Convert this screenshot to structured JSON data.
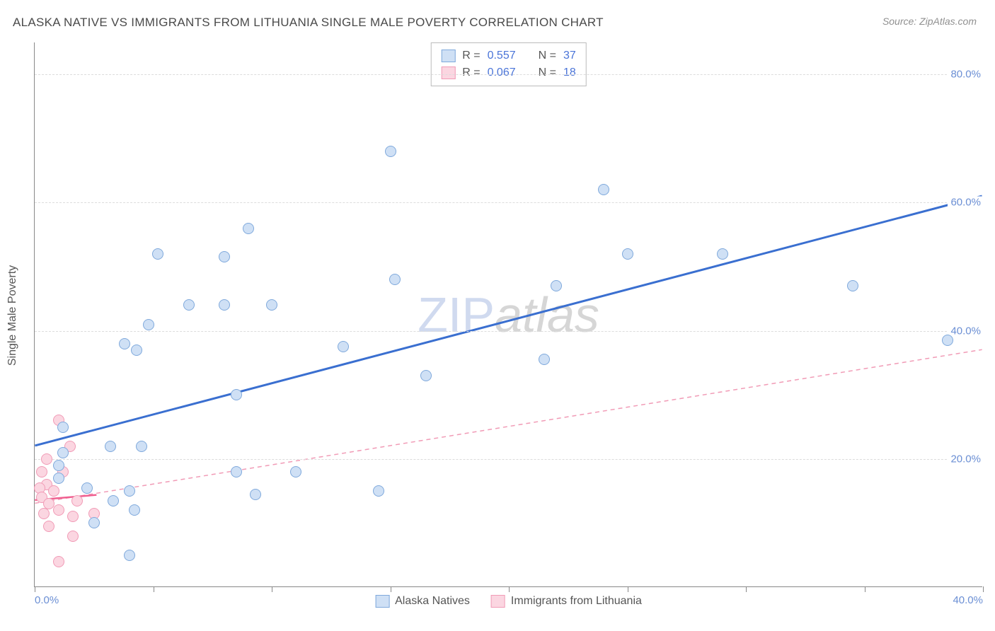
{
  "title": "ALASKA NATIVE VS IMMIGRANTS FROM LITHUANIA SINGLE MALE POVERTY CORRELATION CHART",
  "source": "Source: ZipAtlas.com",
  "y_axis_label": "Single Male Poverty",
  "watermark": {
    "part1": "ZIP",
    "part2": "atlas"
  },
  "chart": {
    "type": "scatter",
    "background_color": "#ffffff",
    "grid_color": "#dcdcdc",
    "axis_color": "#888888",
    "x_domain": [
      0,
      40
    ],
    "y_domain": [
      0,
      85
    ],
    "x_ticks": [
      0,
      5,
      10,
      15,
      20,
      25,
      30,
      35,
      40
    ],
    "x_tick_labels": {
      "0": "0.0%",
      "40": "40.0%"
    },
    "y_gridlines": [
      20,
      40,
      60,
      80
    ],
    "y_tick_labels": {
      "20": "20.0%",
      "40": "40.0%",
      "60": "60.0%",
      "80": "80.0%"
    },
    "tick_label_color": "#6b8fd4",
    "tick_label_fontsize": 15,
    "marker_size": 16
  },
  "series": {
    "alaska": {
      "label": "Alaska Natives",
      "fill": "#cfe0f5",
      "stroke": "#7fa9dc",
      "trend": {
        "x1": 0,
        "y1": 22,
        "x2": 40,
        "y2": 61,
        "stroke": "#3a6fd0",
        "width": 3,
        "dash": "none"
      },
      "R": "0.557",
      "N": "37",
      "points": [
        [
          15.0,
          68.0
        ],
        [
          24.0,
          62.0
        ],
        [
          9.0,
          56.0
        ],
        [
          5.2,
          52.0
        ],
        [
          8.0,
          51.5
        ],
        [
          25.0,
          52.0
        ],
        [
          29.0,
          52.0
        ],
        [
          34.5,
          47.0
        ],
        [
          22.0,
          47.0
        ],
        [
          15.2,
          48.0
        ],
        [
          6.5,
          44.0
        ],
        [
          8.0,
          44.0
        ],
        [
          10.0,
          44.0
        ],
        [
          4.8,
          41.0
        ],
        [
          38.5,
          38.5
        ],
        [
          3.8,
          38.0
        ],
        [
          4.3,
          37.0
        ],
        [
          13.0,
          37.5
        ],
        [
          21.5,
          35.5
        ],
        [
          16.5,
          33.0
        ],
        [
          8.5,
          30.0
        ],
        [
          1.2,
          25.0
        ],
        [
          3.2,
          22.0
        ],
        [
          4.5,
          22.0
        ],
        [
          1.2,
          21.0
        ],
        [
          1.0,
          19.0
        ],
        [
          8.5,
          18.0
        ],
        [
          11.0,
          18.0
        ],
        [
          1.0,
          17.0
        ],
        [
          2.2,
          15.5
        ],
        [
          4.0,
          15.0
        ],
        [
          14.5,
          15.0
        ],
        [
          9.3,
          14.5
        ],
        [
          3.3,
          13.5
        ],
        [
          4.2,
          12.0
        ],
        [
          2.5,
          10.0
        ],
        [
          4.0,
          5.0
        ]
      ]
    },
    "lithuania": {
      "label": "Immigrants from Lithuania",
      "fill": "#fbd6e1",
      "stroke": "#f19bb6",
      "trend": {
        "x1": 0,
        "y1": 13,
        "x2": 40,
        "y2": 37,
        "stroke": "#f19bb6",
        "width": 1.5,
        "dash": "6,5"
      },
      "trend_solid": {
        "x1": 0,
        "y1": 13.5,
        "x2": 2.6,
        "y2": 14.3,
        "stroke": "#f06090",
        "width": 2.5
      },
      "R": "0.067",
      "N": "18",
      "points": [
        [
          1.0,
          26.0
        ],
        [
          1.5,
          22.0
        ],
        [
          0.5,
          20.0
        ],
        [
          0.3,
          18.0
        ],
        [
          1.2,
          18.0
        ],
        [
          0.5,
          16.0
        ],
        [
          0.2,
          15.5
        ],
        [
          0.8,
          15.0
        ],
        [
          0.3,
          14.0
        ],
        [
          0.6,
          13.0
        ],
        [
          1.8,
          13.5
        ],
        [
          1.0,
          12.0
        ],
        [
          0.4,
          11.5
        ],
        [
          1.6,
          11.0
        ],
        [
          2.5,
          11.5
        ],
        [
          1.6,
          8.0
        ],
        [
          0.6,
          9.5
        ],
        [
          1.0,
          4.0
        ]
      ]
    }
  },
  "legend_top": {
    "r_key": "R =",
    "n_key": "N ="
  },
  "legend_bottom_labels": [
    "Alaska Natives",
    "Immigrants from Lithuania"
  ]
}
